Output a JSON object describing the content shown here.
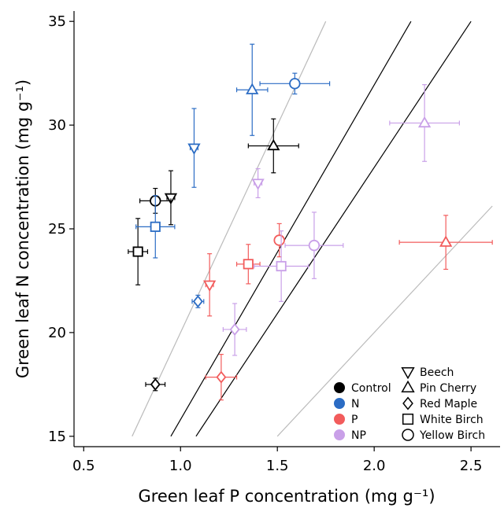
{
  "chart_data": {
    "type": "scatter",
    "title": "",
    "xlabel": "Green leaf P concentration (mg g⁻¹)",
    "ylabel": "Green leaf N concentration (mg g⁻¹)",
    "xlim": [
      0.45,
      2.65
    ],
    "ylim": [
      14.5,
      35.5
    ],
    "xticks": [
      0.5,
      1.0,
      1.5,
      2.0,
      2.5
    ],
    "xtick_labels": [
      "0.5",
      "1.0",
      "1.5",
      "2.0",
      "2.5"
    ],
    "yticks": [
      15,
      20,
      25,
      30,
      35
    ],
    "ytick_labels": [
      "15",
      "20",
      "25",
      "30",
      "35"
    ],
    "grid": false,
    "treatments": [
      {
        "name": "Control",
        "color": "#000000"
      },
      {
        "name": "N",
        "color": "#2b6cc4"
      },
      {
        "name": "P",
        "color": "#f25c5c"
      },
      {
        "name": "NP",
        "color": "#c9a0e8"
      }
    ],
    "species": [
      {
        "name": "Beech",
        "marker": "triangle-down"
      },
      {
        "name": "Pin Cherry",
        "marker": "triangle-up"
      },
      {
        "name": "Red Maple",
        "marker": "diamond"
      },
      {
        "name": "White Birch",
        "marker": "square"
      },
      {
        "name": "Yellow Birch",
        "marker": "circle"
      }
    ],
    "legend_placement": "bottom-right",
    "reference_lines": [
      {
        "x": [
          0.75,
          1.75
        ],
        "y": [
          15,
          35
        ],
        "color": "#bbbbbb"
      },
      {
        "x": [
          0.95,
          2.19
        ],
        "y": [
          15,
          35
        ],
        "color": "#000000"
      },
      {
        "x": [
          1.08,
          2.5
        ],
        "y": [
          15,
          35
        ],
        "color": "#000000"
      },
      {
        "x": [
          1.5,
          2.61
        ],
        "y": [
          15,
          26.1
        ],
        "color": "#bbbbbb"
      }
    ],
    "points": [
      {
        "treatment": "Control",
        "species": "Beech",
        "x": 0.95,
        "y": 26.5,
        "xerr": 0.02,
        "yerr": 1.3
      },
      {
        "treatment": "Control",
        "species": "Pin Cherry",
        "x": 1.48,
        "y": 29.0,
        "xerr": 0.13,
        "yerr": 1.3
      },
      {
        "treatment": "Control",
        "species": "Red Maple",
        "x": 0.87,
        "y": 17.5,
        "xerr": 0.05,
        "yerr": 0.3
      },
      {
        "treatment": "Control",
        "species": "White Birch",
        "x": 0.78,
        "y": 23.9,
        "xerr": 0.05,
        "yerr": 1.6
      },
      {
        "treatment": "Control",
        "species": "Yellow Birch",
        "x": 0.87,
        "y": 26.35,
        "xerr": 0.08,
        "yerr": 0.6
      },
      {
        "treatment": "N",
        "species": "Beech",
        "x": 1.07,
        "y": 28.9,
        "xerr": 0.02,
        "yerr": 1.9
      },
      {
        "treatment": "N",
        "species": "Pin Cherry",
        "x": 1.37,
        "y": 31.7,
        "xerr": 0.08,
        "yerr": 2.2
      },
      {
        "treatment": "N",
        "species": "Red Maple",
        "x": 1.09,
        "y": 21.5,
        "xerr": 0.03,
        "yerr": 0.3
      },
      {
        "treatment": "N",
        "species": "White Birch",
        "x": 0.87,
        "y": 25.1,
        "xerr": 0.1,
        "yerr": 1.5
      },
      {
        "treatment": "N",
        "species": "Yellow Birch",
        "x": 1.59,
        "y": 32.0,
        "xerr": 0.18,
        "yerr": 0.5
      },
      {
        "treatment": "P",
        "species": "Beech",
        "x": 1.15,
        "y": 22.3,
        "xerr": 0.02,
        "yerr": 1.5
      },
      {
        "treatment": "P",
        "species": "Pin Cherry",
        "x": 2.37,
        "y": 24.35,
        "xerr": 0.24,
        "yerr": 1.3
      },
      {
        "treatment": "P",
        "species": "Red Maple",
        "x": 1.21,
        "y": 17.85,
        "xerr": 0.08,
        "yerr": 1.1
      },
      {
        "treatment": "P",
        "species": "White Birch",
        "x": 1.35,
        "y": 23.3,
        "xerr": 0.06,
        "yerr": 0.95
      },
      {
        "treatment": "P",
        "species": "Yellow Birch",
        "x": 1.51,
        "y": 24.45,
        "xerr": 0.02,
        "yerr": 0.8
      },
      {
        "treatment": "NP",
        "species": "Beech",
        "x": 1.4,
        "y": 27.2,
        "xerr": 0.02,
        "yerr": 0.7
      },
      {
        "treatment": "NP",
        "species": "Pin Cherry",
        "x": 2.26,
        "y": 30.1,
        "xerr": 0.18,
        "yerr": 1.85
      },
      {
        "treatment": "NP",
        "species": "Red Maple",
        "x": 1.28,
        "y": 20.15,
        "xerr": 0.06,
        "yerr": 1.25
      },
      {
        "treatment": "NP",
        "species": "White Birch",
        "x": 1.52,
        "y": 23.2,
        "xerr": 0.14,
        "yerr": 1.7
      },
      {
        "treatment": "NP",
        "species": "Yellow Birch",
        "x": 1.69,
        "y": 24.2,
        "xerr": 0.15,
        "yerr": 1.6
      }
    ]
  }
}
